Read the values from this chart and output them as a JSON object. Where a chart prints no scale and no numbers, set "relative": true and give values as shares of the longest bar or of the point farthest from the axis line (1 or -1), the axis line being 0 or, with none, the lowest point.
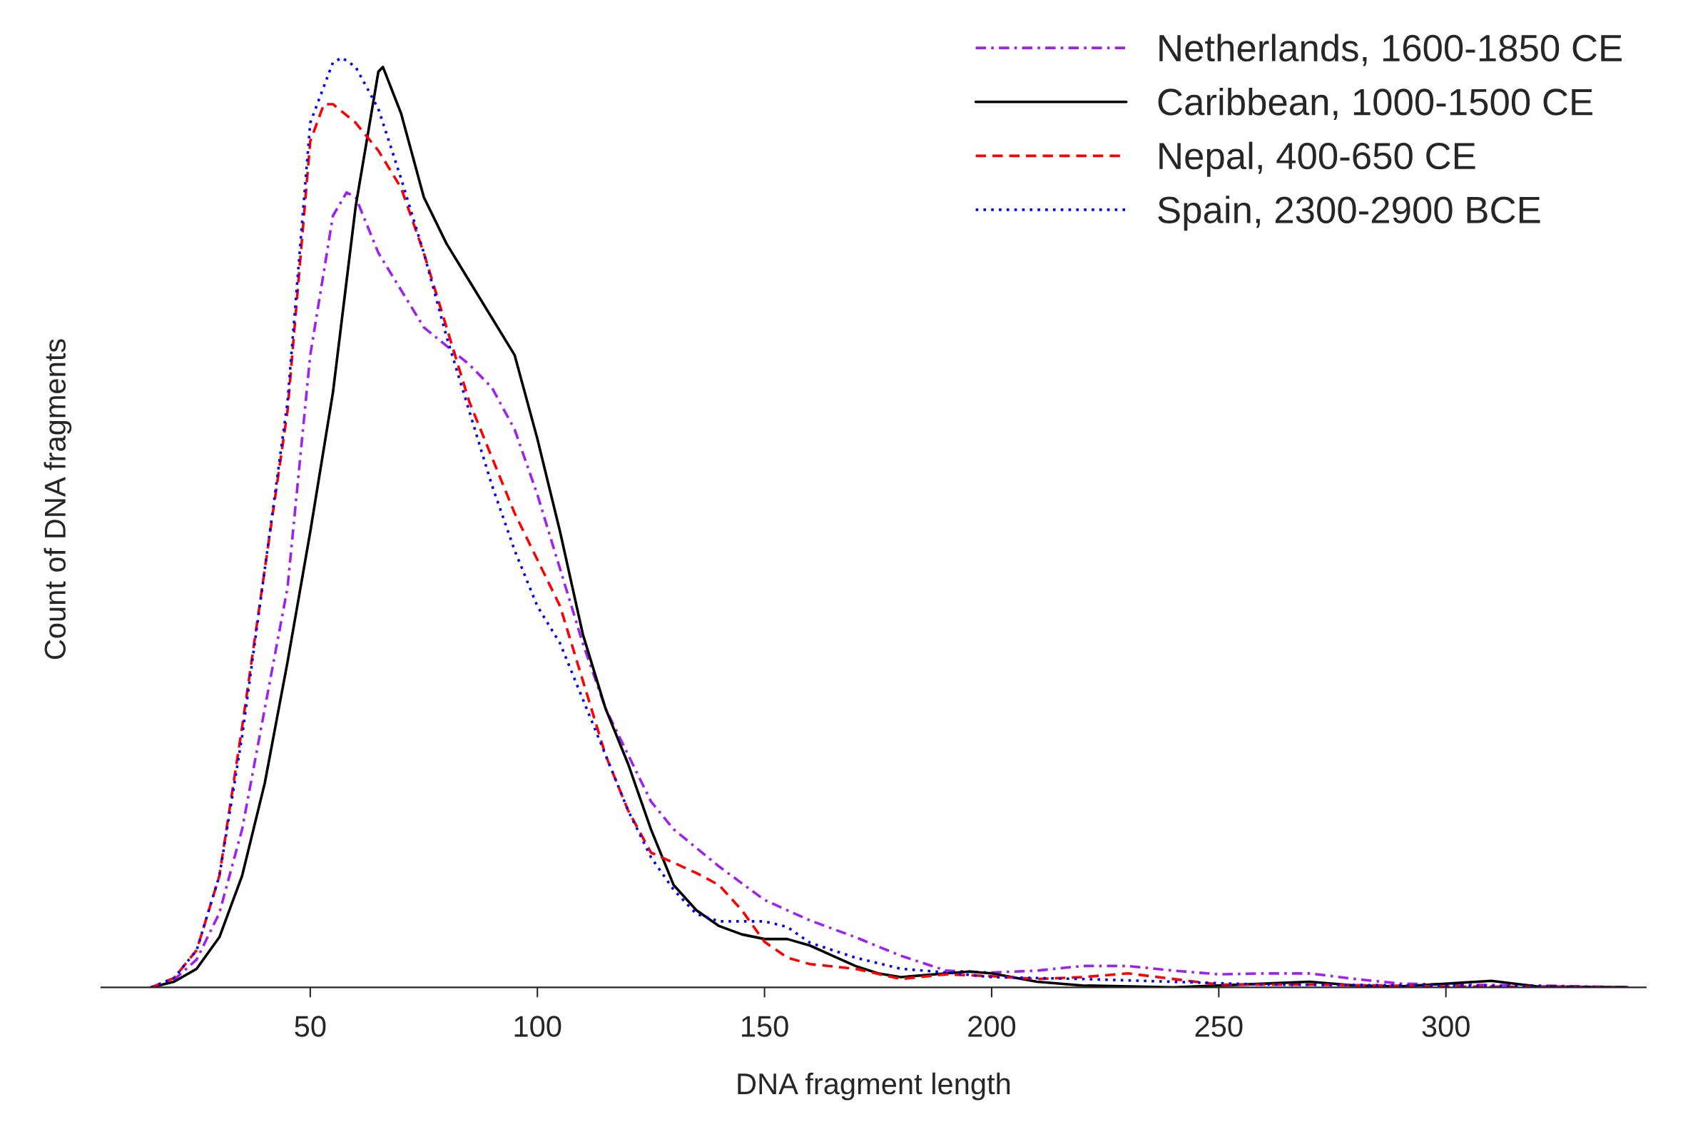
{
  "chart_data": {
    "type": "line",
    "xlabel": "DNA fragment length",
    "ylabel": "Count of DNA fragments",
    "relative": true,
    "xlim": [
      4,
      344
    ],
    "xticks": [
      50,
      100,
      150,
      200,
      250,
      300
    ],
    "grid": false,
    "legend": "top right",
    "marker": "none",
    "series": [
      {
        "name": "Netherlands, 1600-1850 CE",
        "color": "#a020f0",
        "line_style": "dashdot",
        "x": [
          15,
          20,
          25,
          30,
          35,
          40,
          45,
          50,
          55,
          58,
          60,
          65,
          70,
          75,
          80,
          85,
          90,
          95,
          100,
          105,
          110,
          115,
          120,
          125,
          130,
          140,
          150,
          160,
          170,
          180,
          190,
          200,
          210,
          220,
          230,
          240,
          250,
          260,
          270,
          280,
          290,
          300,
          320,
          340
        ],
        "values": [
          0,
          0.008,
          0.03,
          0.08,
          0.17,
          0.3,
          0.43,
          0.68,
          0.83,
          0.855,
          0.85,
          0.79,
          0.75,
          0.71,
          0.69,
          0.67,
          0.645,
          0.6,
          0.53,
          0.45,
          0.37,
          0.3,
          0.25,
          0.2,
          0.17,
          0.13,
          0.094,
          0.072,
          0.054,
          0.034,
          0.018,
          0.016,
          0.018,
          0.023,
          0.023,
          0.018,
          0.014,
          0.015,
          0.015,
          0.009,
          0.004,
          0.003,
          0.002,
          0
        ]
      },
      {
        "name": "Caribbean, 1000-1500 CE",
        "color": "#000000",
        "line_style": "solid",
        "x": [
          15,
          20,
          25,
          30,
          35,
          40,
          45,
          50,
          55,
          60,
          65,
          66,
          70,
          75,
          80,
          85,
          90,
          95,
          100,
          105,
          110,
          115,
          120,
          125,
          130,
          135,
          140,
          145,
          150,
          155,
          160,
          165,
          170,
          175,
          180,
          190,
          195,
          200,
          210,
          220,
          240,
          270,
          280,
          290,
          310,
          320,
          340
        ],
        "values": [
          0,
          0.006,
          0.02,
          0.054,
          0.12,
          0.22,
          0.35,
          0.49,
          0.64,
          0.84,
          0.985,
          0.99,
          0.94,
          0.85,
          0.8,
          0.76,
          0.72,
          0.68,
          0.59,
          0.49,
          0.38,
          0.3,
          0.24,
          0.17,
          0.11,
          0.083,
          0.066,
          0.057,
          0.052,
          0.052,
          0.045,
          0.034,
          0.023,
          0.015,
          0.011,
          0.015,
          0.017,
          0.015,
          0.006,
          0.002,
          0,
          0.006,
          0.002,
          0.001,
          0.007,
          0.001,
          0
        ]
      },
      {
        "name": "Nepal, 400-650 CE",
        "color": "#ff0000",
        "line_style": "dashed",
        "x": [
          15,
          20,
          25,
          30,
          35,
          40,
          45,
          50,
          53,
          55,
          60,
          65,
          70,
          75,
          80,
          85,
          90,
          95,
          100,
          105,
          110,
          115,
          120,
          125,
          130,
          135,
          140,
          145,
          150,
          155,
          160,
          170,
          180,
          190,
          200,
          210,
          220,
          230,
          240,
          250,
          270,
          300,
          340
        ],
        "values": [
          0,
          0.01,
          0.04,
          0.12,
          0.28,
          0.45,
          0.62,
          0.91,
          0.95,
          0.95,
          0.93,
          0.9,
          0.86,
          0.79,
          0.71,
          0.63,
          0.57,
          0.51,
          0.46,
          0.41,
          0.33,
          0.25,
          0.19,
          0.145,
          0.134,
          0.123,
          0.11,
          0.083,
          0.049,
          0.032,
          0.025,
          0.02,
          0.009,
          0.014,
          0.012,
          0.009,
          0.011,
          0.015,
          0.009,
          0.003,
          0.003,
          0.001,
          0
        ]
      },
      {
        "name": "Spain, 2300-2900 BCE",
        "color": "#0000ff",
        "line_style": "dotted",
        "x": [
          15,
          20,
          25,
          30,
          35,
          40,
          45,
          50,
          55,
          57,
          60,
          65,
          70,
          75,
          80,
          85,
          90,
          95,
          100,
          105,
          110,
          115,
          120,
          125,
          130,
          135,
          140,
          150,
          155,
          160,
          170,
          180,
          190,
          200,
          220,
          240,
          260,
          300,
          340
        ],
        "values": [
          0,
          0.01,
          0.04,
          0.12,
          0.27,
          0.45,
          0.63,
          0.93,
          0.995,
          1,
          0.99,
          0.945,
          0.87,
          0.79,
          0.7,
          0.62,
          0.54,
          0.47,
          0.41,
          0.37,
          0.31,
          0.25,
          0.19,
          0.14,
          0.105,
          0.079,
          0.071,
          0.071,
          0.065,
          0.048,
          0.032,
          0.02,
          0.016,
          0.011,
          0.009,
          0.006,
          0.003,
          0.002,
          0
        ]
      }
    ]
  }
}
